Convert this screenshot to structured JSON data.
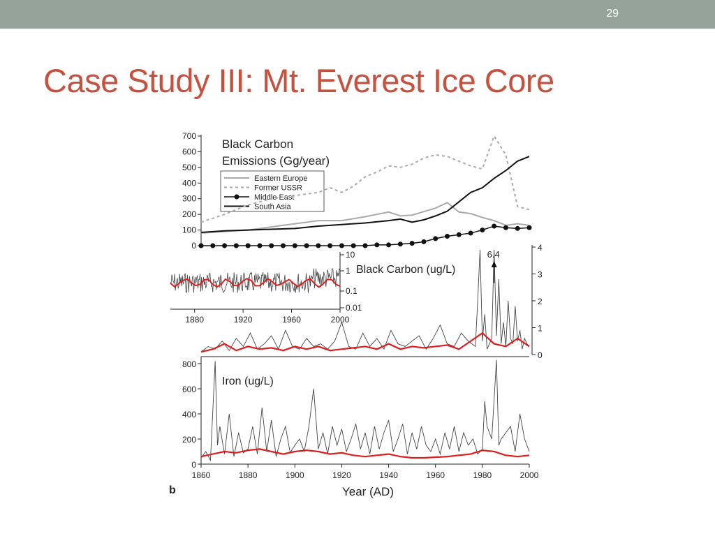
{
  "slide": {
    "number": "29",
    "title": "Case Study III: Mt. Everest Ice Core"
  },
  "colors": {
    "title": "#c5523f",
    "topbar": "#95a39b",
    "smooth": "#dd1e1e",
    "raw": "#444444"
  },
  "chart_data": [
    {
      "type": "line",
      "panel": "emissions",
      "title": "Black Carbon Emissions (Gg/year)",
      "title_lines": [
        "Black Carbon",
        "Emissions (Gg/year)"
      ],
      "ylim": [
        0,
        700
      ],
      "yticks": [
        0,
        100,
        200,
        300,
        400,
        500,
        600,
        700
      ],
      "xlim": [
        1860,
        2000
      ],
      "legend_position": "upper-left",
      "series": [
        {
          "name": "Eastern Europe",
          "style": "gray-solid",
          "x": [
            1860,
            1870,
            1880,
            1890,
            1900,
            1910,
            1920,
            1930,
            1940,
            1945,
            1950,
            1960,
            1965,
            1970,
            1975,
            1980,
            1985,
            1990,
            1995,
            2000
          ],
          "y": [
            80,
            90,
            100,
            120,
            140,
            160,
            160,
            185,
            215,
            190,
            195,
            240,
            275,
            215,
            205,
            180,
            160,
            130,
            140,
            130
          ]
        },
        {
          "name": "Former USSR",
          "style": "gray-dashed",
          "x": [
            1860,
            1870,
            1880,
            1890,
            1900,
            1910,
            1915,
            1920,
            1925,
            1930,
            1935,
            1940,
            1945,
            1950,
            1955,
            1960,
            1965,
            1970,
            1975,
            1980,
            1985,
            1990,
            1995,
            2000
          ],
          "y": [
            150,
            200,
            260,
            300,
            320,
            340,
            370,
            340,
            380,
            440,
            470,
            510,
            500,
            520,
            560,
            580,
            570,
            540,
            510,
            490,
            700,
            580,
            250,
            230
          ]
        },
        {
          "name": "Middle East",
          "style": "black-dotted",
          "x": [
            1860,
            1865,
            1870,
            1875,
            1880,
            1885,
            1890,
            1895,
            1900,
            1905,
            1910,
            1915,
            1920,
            1925,
            1930,
            1935,
            1940,
            1945,
            1950,
            1955,
            1960,
            1965,
            1970,
            1975,
            1980,
            1985,
            1990,
            1995,
            2000
          ],
          "y": [
            0,
            0,
            0,
            0,
            0,
            0,
            0,
            0,
            0,
            0,
            0,
            0,
            0,
            0,
            0,
            5,
            5,
            10,
            15,
            25,
            45,
            60,
            70,
            80,
            100,
            125,
            115,
            110,
            115
          ]
        },
        {
          "name": "South Asia",
          "style": "black-solid",
          "x": [
            1860,
            1870,
            1880,
            1890,
            1900,
            1910,
            1920,
            1930,
            1940,
            1945,
            1950,
            1955,
            1960,
            1965,
            1970,
            1975,
            1980,
            1985,
            1990,
            1995,
            2000
          ],
          "y": [
            85,
            95,
            100,
            105,
            110,
            125,
            135,
            145,
            160,
            170,
            150,
            165,
            190,
            220,
            280,
            340,
            370,
            430,
            480,
            540,
            570
          ]
        }
      ]
    },
    {
      "type": "line",
      "panel": "black-carbon",
      "title": "Black Carbon (ug/L)",
      "ylim": [
        0,
        4
      ],
      "yticks": [
        0,
        1,
        2,
        3,
        4
      ],
      "xlim": [
        1860,
        2000
      ],
      "annotation": "6.4",
      "annotation_x": 1985,
      "series": [
        {
          "name": "",
          "style": "raw",
          "x": [
            1860,
            1863,
            1866,
            1869,
            1872,
            1875,
            1878,
            1881,
            1884,
            1887,
            1890,
            1893,
            1896,
            1899,
            1902,
            1905,
            1908,
            1911,
            1914,
            1917,
            1920,
            1923,
            1926,
            1929,
            1932,
            1935,
            1938,
            1941,
            1944,
            1947,
            1950,
            1953,
            1956,
            1959,
            1962,
            1965,
            1968,
            1971,
            1974,
            1977,
            1978,
            1979,
            1980,
            1981,
            1982,
            1984,
            1985,
            1986,
            1987,
            1988,
            1989,
            1990,
            1991,
            1992,
            1993,
            1994,
            1995,
            1996,
            1997,
            1998,
            1999,
            2000
          ],
          "y": [
            0.1,
            0.3,
            0.2,
            0.5,
            0.15,
            0.6,
            0.3,
            0.8,
            0.2,
            0.4,
            0.7,
            0.2,
            0.9,
            0.3,
            0.2,
            0.6,
            0.3,
            0.4,
            0.2,
            0.5,
            1.2,
            0.3,
            0.2,
            0.8,
            0.3,
            0.6,
            0.2,
            0.9,
            0.4,
            0.3,
            0.5,
            0.7,
            0.2,
            0.6,
            1.1,
            0.4,
            0.3,
            0.8,
            0.5,
            0.3,
            2.0,
            3.9,
            0.5,
            1.5,
            0.2,
            0.6,
            3.9,
            0.7,
            2.8,
            0.4,
            1.2,
            0.3,
            2.0,
            0.6,
            0.4,
            1.8,
            0.5,
            0.9,
            0.2,
            0.6,
            0.4,
            0.3
          ]
        },
        {
          "name": "",
          "style": "smooth",
          "x": [
            1860,
            1865,
            1870,
            1875,
            1880,
            1885,
            1890,
            1895,
            1900,
            1905,
            1910,
            1915,
            1920,
            1925,
            1930,
            1935,
            1940,
            1945,
            1950,
            1955,
            1960,
            1965,
            1970,
            1975,
            1980,
            1985,
            1990,
            1995,
            2000
          ],
          "y": [
            0.1,
            0.2,
            0.4,
            0.15,
            0.3,
            0.2,
            0.25,
            0.15,
            0.3,
            0.2,
            0.3,
            0.15,
            0.2,
            0.25,
            0.3,
            0.2,
            0.4,
            0.2,
            0.3,
            0.25,
            0.3,
            0.35,
            0.2,
            0.5,
            0.8,
            0.4,
            0.3,
            0.6,
            0.3
          ]
        }
      ],
      "inset": {
        "type": "line",
        "scale": "log",
        "yticks": [
          "10",
          "1",
          "0.1",
          "0.01"
        ],
        "xticks": [
          1880,
          1920,
          1960,
          2000
        ],
        "xlim": [
          1860,
          2000
        ]
      }
    },
    {
      "type": "line",
      "panel": "iron",
      "title": "Iron (ug/L)",
      "ylim": [
        0,
        800
      ],
      "yticks": [
        0,
        200,
        400,
        600,
        800
      ],
      "xlim": [
        1860,
        2000
      ],
      "xticks": [
        1860,
        1880,
        1900,
        1920,
        1940,
        1960,
        1980,
        2000
      ],
      "xlabel": "Year (AD)",
      "panel_label": "b",
      "series": [
        {
          "name": "",
          "style": "raw",
          "x": [
            1860,
            1862,
            1864,
            1866,
            1867,
            1868,
            1870,
            1872,
            1874,
            1876,
            1878,
            1880,
            1882,
            1884,
            1886,
            1888,
            1890,
            1892,
            1894,
            1896,
            1898,
            1900,
            1902,
            1904,
            1906,
            1908,
            1910,
            1912,
            1914,
            1916,
            1918,
            1920,
            1922,
            1924,
            1926,
            1928,
            1930,
            1932,
            1934,
            1936,
            1938,
            1940,
            1942,
            1944,
            1946,
            1948,
            1950,
            1952,
            1954,
            1956,
            1958,
            1960,
            1962,
            1964,
            1966,
            1968,
            1970,
            1972,
            1974,
            1976,
            1978,
            1980,
            1981,
            1982,
            1984,
            1986,
            1987,
            1988,
            1990,
            1992,
            1994,
            1996,
            1998,
            2000
          ],
          "y": [
            50,
            100,
            30,
            820,
            150,
            300,
            80,
            400,
            60,
            250,
            90,
            120,
            300,
            80,
            450,
            100,
            350,
            60,
            200,
            300,
            90,
            150,
            200,
            100,
            300,
            600,
            120,
            250,
            80,
            300,
            150,
            280,
            100,
            200,
            320,
            120,
            250,
            80,
            300,
            120,
            250,
            350,
            100,
            200,
            320,
            80,
            250,
            120,
            300,
            150,
            100,
            200,
            80,
            250,
            120,
            300,
            100,
            250,
            150,
            200,
            80,
            120,
            500,
            300,
            200,
            900,
            150,
            200,
            250,
            300,
            100,
            400,
            200,
            100
          ]
        },
        {
          "name": "",
          "style": "smooth",
          "x": [
            1860,
            1865,
            1870,
            1875,
            1880,
            1885,
            1890,
            1895,
            1900,
            1905,
            1910,
            1915,
            1920,
            1925,
            1930,
            1935,
            1940,
            1945,
            1950,
            1955,
            1960,
            1965,
            1970,
            1975,
            1980,
            1985,
            1990,
            1995,
            2000
          ],
          "y": [
            60,
            80,
            100,
            90,
            110,
            120,
            100,
            80,
            100,
            110,
            100,
            80,
            90,
            70,
            60,
            70,
            80,
            60,
            50,
            50,
            55,
            60,
            70,
            80,
            110,
            100,
            70,
            60,
            70
          ]
        }
      ]
    }
  ]
}
